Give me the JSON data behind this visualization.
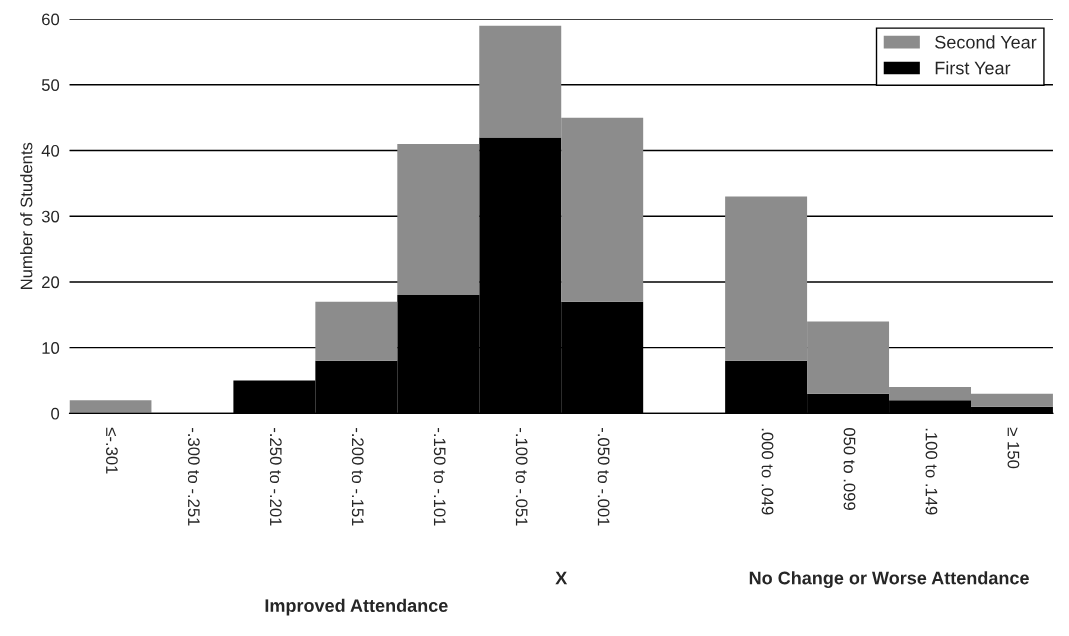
{
  "chart_data": {
    "type": "bar",
    "stacked": true,
    "categories": [
      "≤-.301",
      "-.300 to -.251",
      "-.250 to -.201",
      "-.200 to -.151",
      "-.150 to -.101",
      "-.100 to -.051",
      "-.050 to -.001",
      null,
      ".000 to .049",
      "050 to .099",
      ".100 to .149",
      "≥ 150"
    ],
    "series": [
      {
        "name": "First Year",
        "color": "#000000",
        "values": [
          0,
          0,
          5,
          8,
          18,
          42,
          17,
          null,
          8,
          3,
          2,
          1
        ]
      },
      {
        "name": "Second Year",
        "color": "#8c8c8c",
        "values": [
          2,
          0,
          0,
          9,
          23,
          17,
          28,
          null,
          25,
          11,
          2,
          2
        ]
      }
    ],
    "xlabel": "X",
    "ylabel": "Number of Students",
    "annotations": [
      "Improved Attendance",
      "No Change or Worse Attendance"
    ],
    "ylim": [
      0,
      60
    ],
    "yticks": [
      0,
      10,
      20,
      30,
      40,
      50,
      60
    ],
    "grid": "y",
    "legend": "top right"
  }
}
